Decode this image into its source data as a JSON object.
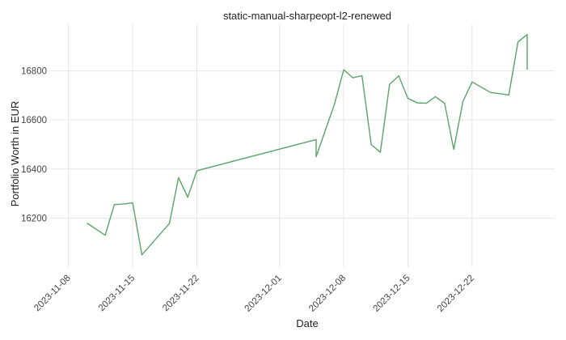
{
  "chart_data": {
    "type": "line",
    "title": "static-manual-sharpeopt-l2-renewed",
    "xlabel": "Date",
    "ylabel": "Portfolio Worth in EUR",
    "x_ticks": [
      "2023-11-08",
      "2023-11-15",
      "2023-11-22",
      "2023-12-01",
      "2023-12-08",
      "2023-12-15",
      "2023-12-22"
    ],
    "y_ticks": [
      16200,
      16400,
      16600,
      16800
    ],
    "xlim": [
      "2023-11-06",
      "2023-12-31"
    ],
    "ylim": [
      16000,
      16990
    ],
    "grid": true,
    "legend": "none",
    "colors": {
      "series": "#5aa469"
    },
    "series": [
      {
        "x": [
          "2023-11-10",
          "2023-11-12",
          "2023-11-13",
          "2023-11-14",
          "2023-11-15",
          "2023-11-16",
          "2023-11-19",
          "2023-11-20",
          "2023-11-21",
          "2023-11-22",
          "2023-12-05",
          "2023-12-05",
          "2023-12-07",
          "2023-12-08",
          "2023-12-09",
          "2023-12-10",
          "2023-12-11",
          "2023-12-12",
          "2023-12-13",
          "2023-12-14",
          "2023-12-15",
          "2023-12-16",
          "2023-12-17",
          "2023-12-18",
          "2023-12-19",
          "2023-12-20",
          "2023-12-21",
          "2023-12-22",
          "2023-12-24",
          "2023-12-26",
          "2023-12-27",
          "2023-12-28",
          "2023-12-28"
        ],
        "y": [
          16180,
          16130,
          16255,
          16257,
          16262,
          16050,
          16178,
          16365,
          16285,
          16393,
          16520,
          16450,
          16665,
          16805,
          16772,
          16780,
          16500,
          16468,
          16745,
          16780,
          16688,
          16670,
          16668,
          16695,
          16668,
          16480,
          16675,
          16755,
          16712,
          16702,
          16918,
          16948,
          16805
        ]
      }
    ]
  }
}
